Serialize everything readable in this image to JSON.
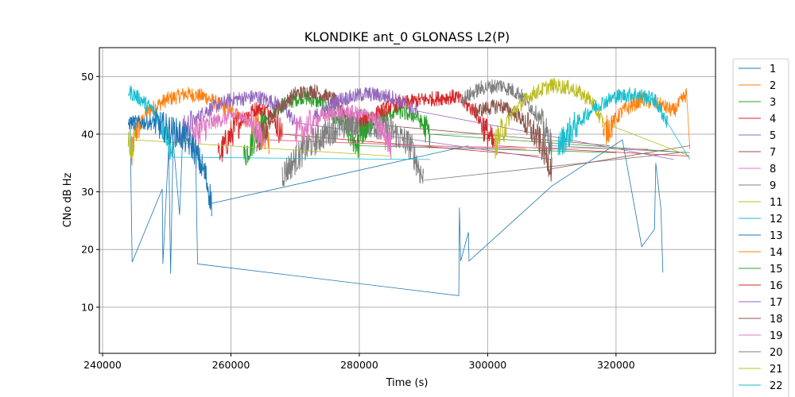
{
  "chart_data": {
    "type": "line",
    "title": "KLONDIKE ant_0 GLONASS L2(P)",
    "xlabel": "Time (s)",
    "ylabel": "CNo dB Hz",
    "xlim": [
      239500,
      335500
    ],
    "ylim": [
      2,
      55
    ],
    "xticks": [
      240000,
      260000,
      280000,
      300000,
      320000
    ],
    "xtick_labels": [
      "240000",
      "260000",
      "280000",
      "300000",
      "320000"
    ],
    "yticks": [
      10,
      20,
      30,
      40,
      50
    ],
    "ytick_labels": [
      "10",
      "20",
      "30",
      "40",
      "50"
    ],
    "grid": true,
    "legend_placement": "outside-right",
    "series": [
      {
        "name": "1",
        "color": "#1f77b4",
        "points": [
          [
            244300,
            41
          ],
          [
            244600,
            17.8
          ],
          [
            249300,
            30.5
          ],
          [
            249400,
            17.5
          ],
          [
            250300,
            38
          ],
          [
            250600,
            15.8
          ],
          [
            251000,
            39
          ],
          [
            252000,
            26
          ],
          [
            252500,
            40
          ],
          [
            254500,
            37
          ],
          [
            254800,
            17.5
          ],
          [
            295500,
            12
          ],
          [
            295600,
            27.3
          ],
          [
            295800,
            18
          ],
          [
            297000,
            23
          ],
          [
            297100,
            18
          ],
          [
            310000,
            31
          ],
          [
            321000,
            39
          ],
          [
            324000,
            20.5
          ],
          [
            326000,
            23.5
          ],
          [
            326200,
            35
          ],
          [
            327000,
            27
          ],
          [
            327300,
            16
          ]
        ]
      },
      {
        "name": "2",
        "color": "#ff7f0e",
        "points": [
          [
            244500,
            35
          ],
          [
            245000,
            40
          ],
          [
            247000,
            44
          ],
          [
            250000,
            46
          ],
          [
            253000,
            47
          ],
          [
            256000,
            46.5
          ],
          [
            260000,
            44
          ],
          [
            263000,
            42
          ],
          [
            266000,
            39
          ]
        ]
      },
      {
        "name": "3",
        "color": "#2ca02c",
        "points": [
          [
            262000,
            36
          ],
          [
            265000,
            42
          ],
          [
            268000,
            45
          ],
          [
            271000,
            46.5
          ],
          [
            274000,
            45.5
          ],
          [
            277000,
            42
          ],
          [
            280000,
            38
          ]
        ]
      },
      {
        "name": "4",
        "color": "#d62728",
        "points": [
          [
            258000,
            36
          ],
          [
            260000,
            40
          ],
          [
            262000,
            43
          ],
          [
            264000,
            44.5
          ],
          [
            266000,
            44
          ],
          [
            268000,
            40
          ]
        ]
      },
      {
        "name": "5",
        "color": "#9467bd",
        "points": [
          [
            252000,
            40
          ],
          [
            256000,
            44
          ],
          [
            260000,
            46
          ],
          [
            264000,
            46.5
          ],
          [
            268000,
            45
          ],
          [
            270000,
            42
          ]
        ]
      },
      {
        "name": "7",
        "color": "#8c564b",
        "points": [
          [
            264000,
            38
          ],
          [
            267000,
            44
          ],
          [
            270000,
            47
          ],
          [
            273000,
            47.5
          ],
          [
            276000,
            46
          ],
          [
            279000,
            42
          ]
        ]
      },
      {
        "name": "8",
        "color": "#e377c2",
        "points": [
          [
            254000,
            40
          ],
          [
            257000,
            42
          ],
          [
            261000,
            43.5
          ],
          [
            263000,
            42
          ],
          [
            265000,
            39
          ]
        ]
      },
      {
        "name": "9",
        "color": "#7f7f7f",
        "points": [
          [
            268000,
            33
          ],
          [
            272000,
            38
          ],
          [
            276000,
            41
          ],
          [
            280000,
            42
          ],
          [
            284000,
            41.5
          ],
          [
            288000,
            38
          ],
          [
            290000,
            32
          ]
        ]
      },
      {
        "name": "11",
        "color": "#bcbd22",
        "points": [
          [
            244000,
            40
          ],
          [
            244500,
            37
          ],
          [
            245000,
            39
          ]
        ]
      },
      {
        "name": "12",
        "color": "#17becf",
        "points": [
          [
            244000,
            47.5
          ],
          [
            246000,
            46
          ],
          [
            248000,
            44
          ],
          [
            250000,
            40
          ],
          [
            251000,
            36
          ]
        ]
      },
      {
        "name": "13",
        "color": "#1f77b4",
        "points": [
          [
            244000,
            42
          ],
          [
            248000,
            42
          ],
          [
            252000,
            40
          ],
          [
            254000,
            38
          ],
          [
            256000,
            33
          ],
          [
            257000,
            28
          ]
        ]
      },
      {
        "name": "14",
        "color": "#ff7f0e",
        "points": [
          [
            318000,
            40
          ],
          [
            321000,
            44
          ],
          [
            324000,
            46
          ],
          [
            327000,
            45
          ],
          [
            329000,
            44
          ],
          [
            331000,
            47
          ]
        ]
      },
      {
        "name": "15",
        "color": "#2ca02c",
        "points": [
          [
            280000,
            40
          ],
          [
            283000,
            43
          ],
          [
            286000,
            44
          ],
          [
            289000,
            43
          ],
          [
            291000,
            40
          ]
        ]
      },
      {
        "name": "16",
        "color": "#d62728",
        "points": [
          [
            280000,
            42
          ],
          [
            285000,
            45
          ],
          [
            290000,
            46
          ],
          [
            295000,
            46.5
          ],
          [
            298000,
            44
          ],
          [
            301000,
            38
          ]
        ]
      },
      {
        "name": "17",
        "color": "#9467bd",
        "points": [
          [
            273000,
            43
          ],
          [
            277000,
            46
          ],
          [
            281000,
            47
          ],
          [
            285000,
            46.5
          ],
          [
            289000,
            44
          ]
        ]
      },
      {
        "name": "18",
        "color": "#8c564b",
        "points": [
          [
            298000,
            44
          ],
          [
            302000,
            45
          ],
          [
            305000,
            43
          ],
          [
            308000,
            39
          ],
          [
            310000,
            34
          ]
        ]
      },
      {
        "name": "19",
        "color": "#e377c2",
        "points": [
          [
            270000,
            40
          ],
          [
            274000,
            43
          ],
          [
            278000,
            44
          ],
          [
            282000,
            43
          ],
          [
            285000,
            38
          ]
        ]
      },
      {
        "name": "20",
        "color": "#7f7f7f",
        "points": [
          [
            296000,
            46
          ],
          [
            299000,
            48
          ],
          [
            302000,
            48.5
          ],
          [
            305000,
            47
          ],
          [
            308000,
            43
          ],
          [
            310000,
            38
          ]
        ]
      },
      {
        "name": "21",
        "color": "#bcbd22",
        "points": [
          [
            301000,
            38
          ],
          [
            304000,
            44
          ],
          [
            307000,
            47
          ],
          [
            310000,
            48.5
          ],
          [
            313000,
            48
          ],
          [
            316000,
            46
          ],
          [
            318000,
            42
          ]
        ]
      },
      {
        "name": "22",
        "color": "#17becf",
        "points": [
          [
            311000,
            38
          ],
          [
            314000,
            42
          ],
          [
            317000,
            45
          ],
          [
            320000,
            46.5
          ],
          [
            323000,
            47
          ],
          [
            326000,
            46
          ],
          [
            328000,
            42
          ]
        ]
      }
    ]
  }
}
